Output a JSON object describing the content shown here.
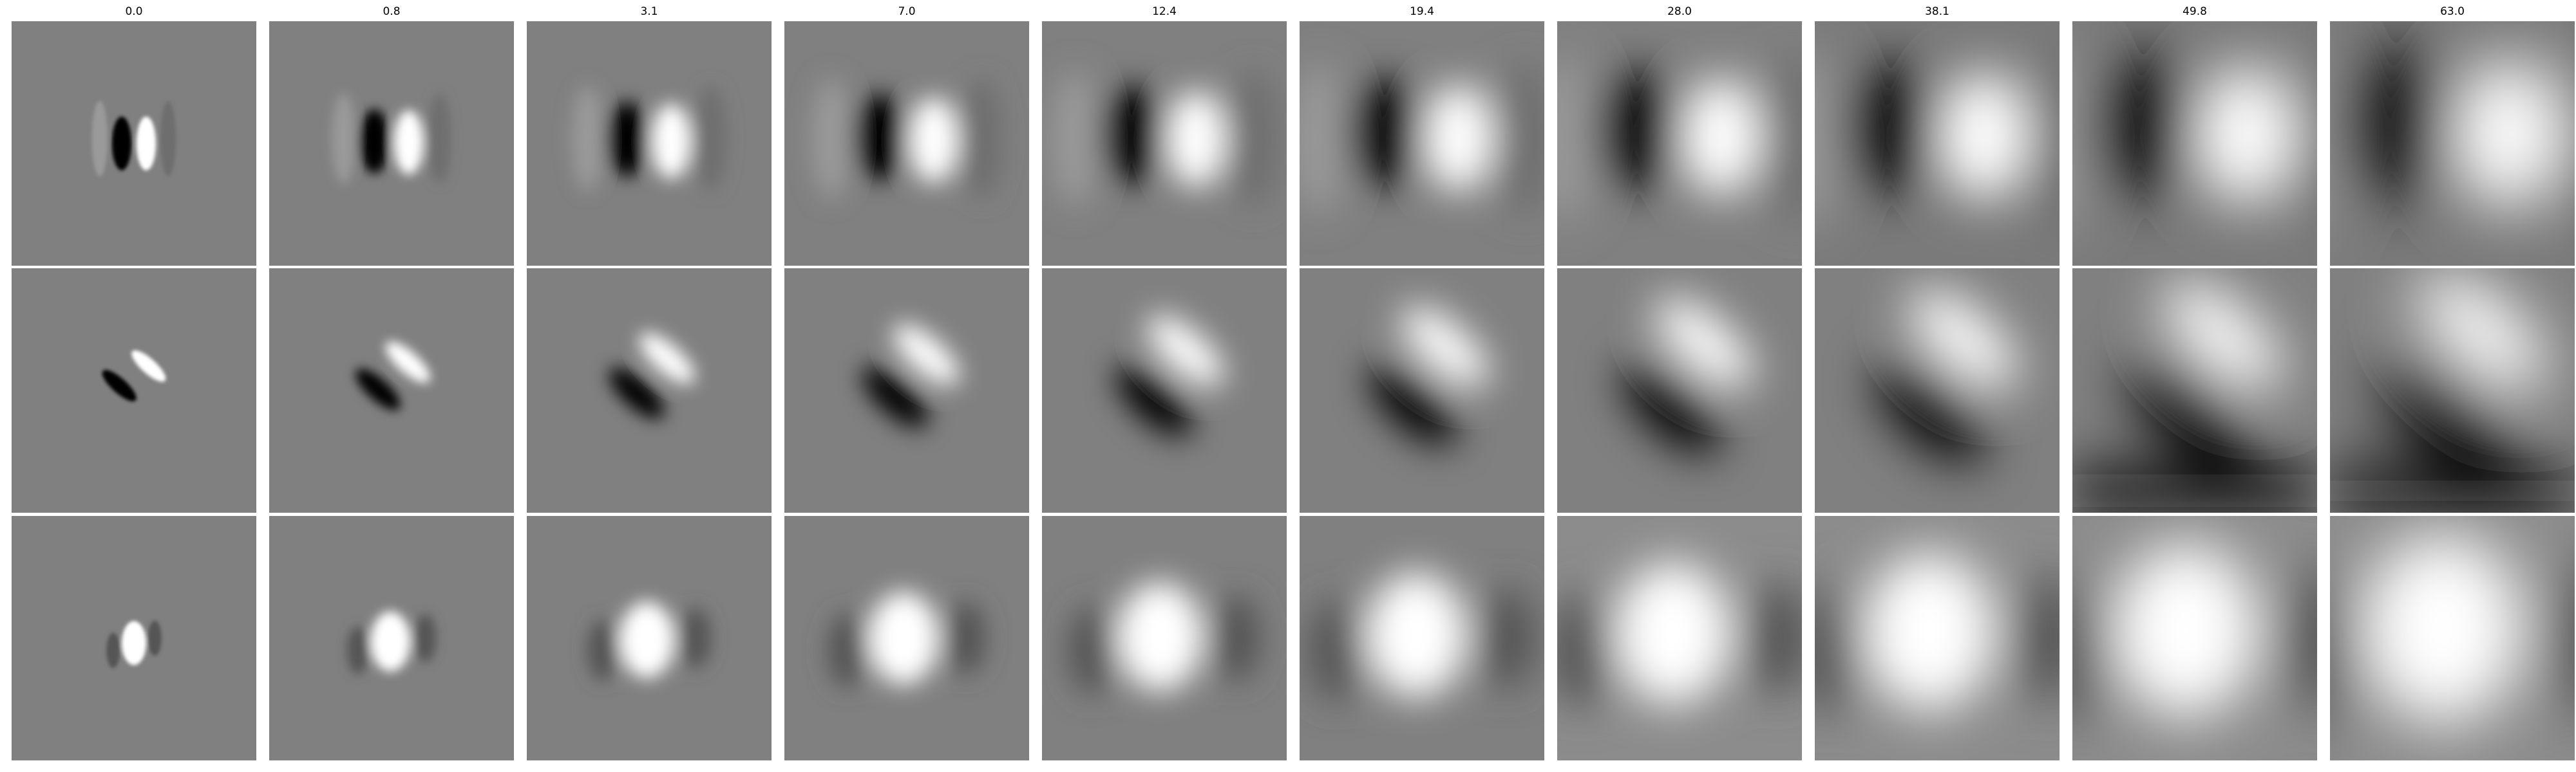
{
  "columns": [
    {
      "title": "0.0"
    },
    {
      "title": "0.8"
    },
    {
      "title": "3.1"
    },
    {
      "title": "7.0"
    },
    {
      "title": "12.4"
    },
    {
      "title": "19.4"
    },
    {
      "title": "28.0"
    },
    {
      "title": "38.1"
    },
    {
      "title": "49.8"
    },
    {
      "title": "63.0"
    }
  ],
  "rows": [
    {
      "kind": "vertical-odd-filter"
    },
    {
      "kind": "diagonal-odd-filter"
    },
    {
      "kind": "even-center-filter"
    }
  ],
  "colors": {
    "background": "#ffffff",
    "panel_gray": "#808080",
    "black": "#000000",
    "white": "#ffffff"
  }
}
